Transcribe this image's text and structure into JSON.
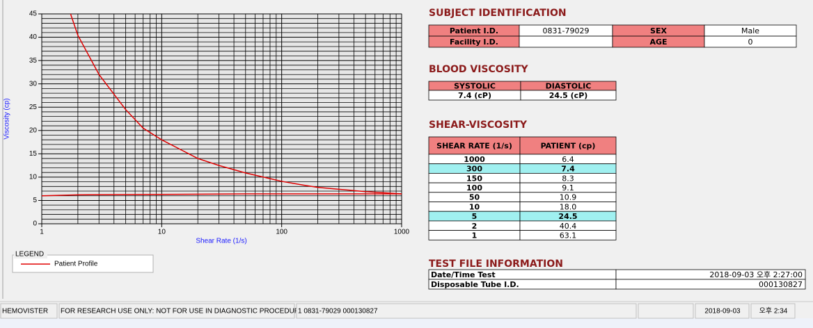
{
  "chart_data": {
    "type": "line",
    "x_label": "Shear Rate (1/s)",
    "y_label": "Viscosity (cp)",
    "xlog": true,
    "xlim": [
      1,
      1000
    ],
    "ylim": [
      0,
      45
    ],
    "xticks": [
      1,
      10,
      100,
      1000
    ],
    "yticks": [
      0,
      5,
      10,
      15,
      20,
      25,
      30,
      35,
      40,
      45
    ],
    "xminorticks": [
      2,
      3,
      4,
      5,
      6,
      7,
      8,
      9,
      20,
      30,
      40,
      50,
      60,
      70,
      80,
      90,
      200,
      300,
      400,
      500,
      600,
      700,
      800,
      900
    ],
    "yminorticks": [
      1,
      2,
      3,
      4,
      6,
      7,
      8,
      9,
      11,
      12,
      13,
      14,
      16,
      17,
      18,
      19,
      21,
      22,
      23,
      24,
      26,
      27,
      28,
      29,
      31,
      32,
      33,
      34,
      36,
      37,
      38,
      39,
      41,
      42,
      43,
      44
    ],
    "grid": true,
    "legend_title": "LEGEND",
    "series": [
      {
        "name": "Patient Profile",
        "color": "#e00000",
        "x": [
          1,
          2,
          3,
          5,
          7,
          10,
          20,
          30,
          50,
          100,
          150,
          200,
          300,
          500,
          1000
        ],
        "values": [
          63.1,
          40.4,
          32,
          24.5,
          20.5,
          18.0,
          14,
          12.5,
          10.9,
          9.1,
          8.3,
          7.8,
          7.4,
          6.9,
          6.4
        ]
      },
      {
        "color": "#e00000",
        "x": [
          1,
          2,
          50,
          1000
        ],
        "values": [
          6,
          6.2,
          6.4,
          6.4
        ]
      }
    ]
  },
  "subject_identification": {
    "title": "SUBJECT IDENTIFICATION",
    "rows": [
      [
        "Patient I.D.",
        "0831-79029",
        "SEX",
        "Male"
      ],
      [
        "Facility I.D.",
        null,
        "AGE",
        "0"
      ]
    ]
  },
  "blood_viscosity": {
    "title": "BLOOD VISCOSITY",
    "headers": [
      "SYSTOLIC",
      "DIASTOLIC"
    ],
    "values": [
      "7.4 (cP)",
      "24.5 (cP)"
    ]
  },
  "shear_viscosity": {
    "title": "SHEAR-VISCOSITY",
    "headers": [
      "SHEAR RATE (1/s)",
      "PATIENT (cp)"
    ],
    "rows": [
      [
        "1000",
        "6.4"
      ],
      [
        "300",
        "7.4"
      ],
      [
        "150",
        "8.3"
      ],
      [
        "100",
        "9.1"
      ],
      [
        "50",
        "10.9"
      ],
      [
        "10",
        "18.0"
      ],
      [
        "5",
        "24.5"
      ],
      [
        "2",
        "40.4"
      ],
      [
        "1",
        "63.1"
      ]
    ],
    "highlight_rows": [
      1,
      6
    ]
  },
  "test_file_information": {
    "title": "TEST FILE INFORMATION",
    "rows": [
      [
        "Date/Time Test",
        "2018-09-03  오후 2:27:00"
      ],
      [
        "Disposable Tube I.D.",
        "000130827"
      ]
    ]
  },
  "status_bar": [
    "HEMOVISTER",
    "FOR RESEARCH USE ONLY: NOT FOR USE IN DIAGNOSTIC PROCEDURES",
    "1  0831-79029  000130827",
    null,
    "2018-09-03",
    "오후 2:34"
  ]
}
